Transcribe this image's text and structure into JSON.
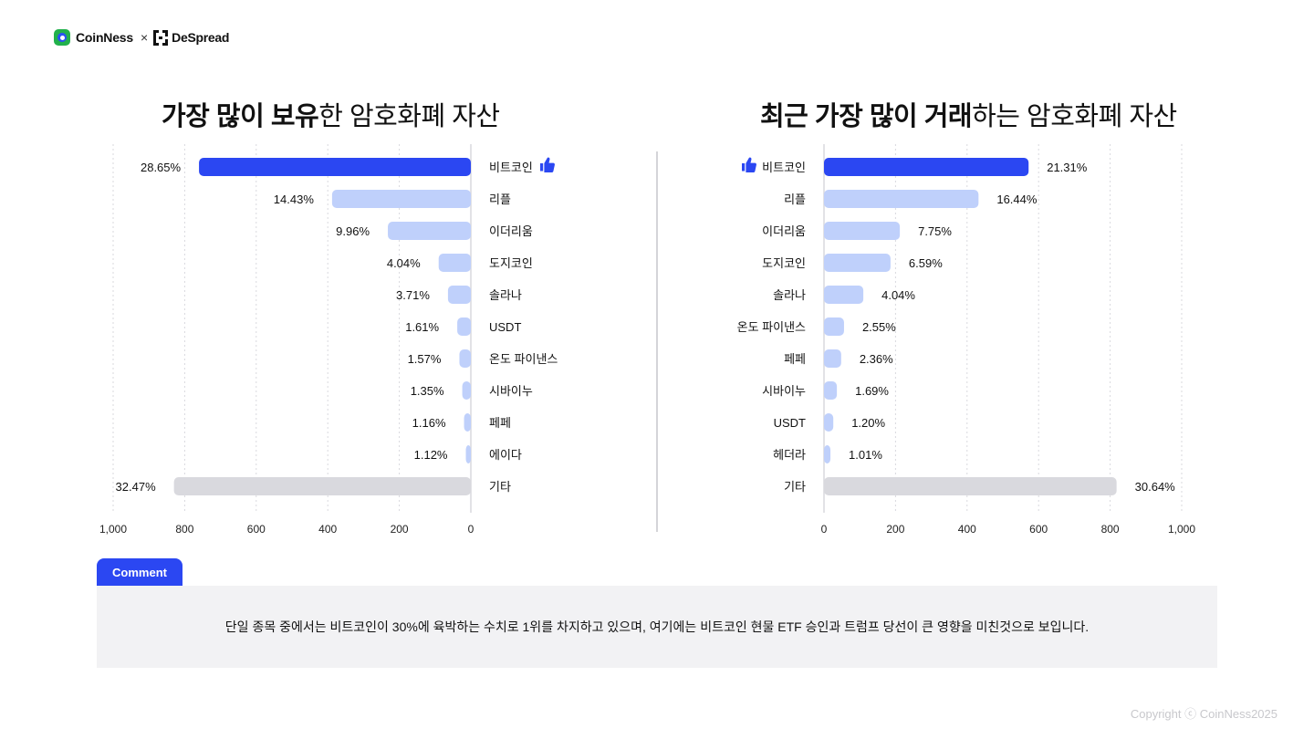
{
  "header": {
    "brand1": "CoinNess",
    "separator": "×",
    "brand2": "DeSpread"
  },
  "charts": {
    "left_title_bold": "가장 많이 보유",
    "left_title_rest": "한 암호화폐 자산",
    "right_title_bold": "최근 가장 많이 거래",
    "right_title_rest": "하는 암호화폐 자산"
  },
  "chart_data": [
    {
      "type": "bar",
      "orientation": "horizontal",
      "direction": "right-to-left",
      "title": "가장 많이 보유한 암호화폐 자산",
      "categories": [
        "비트코인",
        "리플",
        "이더리움",
        "도지코인",
        "솔라나",
        "USDT",
        "온도 파이낸스",
        "시바이누",
        "페페",
        "에이다",
        "기타"
      ],
      "values": [
        760,
        388,
        232,
        90,
        64,
        38,
        32,
        24,
        19,
        14,
        830
      ],
      "value_labels": [
        "28.65%",
        "14.43%",
        "9.96%",
        "4.04%",
        "3.71%",
        "1.61%",
        "1.57%",
        "1.35%",
        "1.16%",
        "1.12%",
        "32.47%"
      ],
      "highlight": [
        "bitcoin",
        "other"
      ],
      "xlim": [
        0,
        1000
      ],
      "xticks": [
        "1,000",
        "800",
        "600",
        "400",
        "200",
        "0"
      ],
      "grid": true
    },
    {
      "type": "bar",
      "orientation": "horizontal",
      "direction": "left-to-right",
      "title": "최근 가장 많이 거래하는 암호화폐 자산",
      "categories": [
        "비트코인",
        "리플",
        "이더리움",
        "도지코인",
        "솔라나",
        "온도 파이낸스",
        "페페",
        "시바이누",
        "USDT",
        "헤더라",
        "기타"
      ],
      "values": [
        572,
        432,
        212,
        186,
        110,
        56,
        48,
        36,
        26,
        18,
        818
      ],
      "value_labels": [
        "21.31%",
        "16.44%",
        "7.75%",
        "6.59%",
        "4.04%",
        "2.55%",
        "2.36%",
        "1.69%",
        "1.20%",
        "1.01%",
        "30.64%"
      ],
      "xlim": [
        0,
        1000
      ],
      "xticks": [
        "0",
        "200",
        "400",
        "600",
        "800",
        "1,000"
      ],
      "grid": true
    }
  ],
  "colors": {
    "primary": "#2b47f2",
    "secondary": "#bfd0fb",
    "other": "#d9d9de",
    "grid": "#d9d9de"
  },
  "comment": {
    "tab_label": "Comment",
    "text": "단일 종목 중에서는 비트코인이 30%에 육박하는 수치로 1위를 차지하고 있으며, 여기에는 비트코인 현물 ETF 승인과 트럼프 당선이 큰 영향을 미친것으로 보입니다."
  },
  "footer": {
    "copyright": "Copyright ⓒ CoinNess2025"
  }
}
